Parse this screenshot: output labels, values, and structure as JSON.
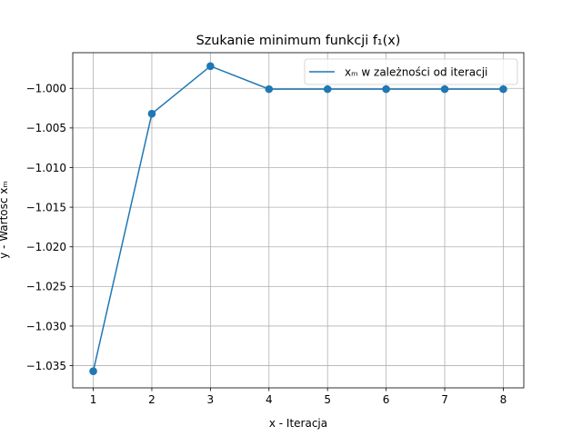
{
  "chart_data": {
    "type": "line",
    "title": "Szukanie minimum funkcji f₁(x)",
    "xlabel": "x - Iteracja",
    "ylabel": "y - Wartość xₘ",
    "x": [
      1,
      2,
      3,
      4,
      5,
      6,
      7,
      8
    ],
    "series": [
      {
        "name": "xₘ w zależności od iteracji",
        "values": [
          -1.0357,
          -1.0032,
          -0.9972,
          -1.0001,
          -1.0001,
          -1.0001,
          -1.0001,
          -1.0001
        ],
        "color": "#1f77b4",
        "markers": true
      }
    ],
    "xlim": [
      0.65,
      8.35
    ],
    "ylim": [
      -1.0378,
      -0.9955
    ],
    "xticks": [
      1,
      2,
      3,
      4,
      5,
      6,
      7,
      8
    ],
    "yticks": [
      -1.035,
      -1.03,
      -1.025,
      -1.02,
      -1.015,
      -1.01,
      -1.005,
      -1.0
    ],
    "ytick_labels": [
      "−1.035",
      "−1.030",
      "−1.025",
      "−1.020",
      "−1.015",
      "−1.010",
      "−1.005",
      "−1.000"
    ],
    "grid": true,
    "legend_position": "upper right"
  }
}
